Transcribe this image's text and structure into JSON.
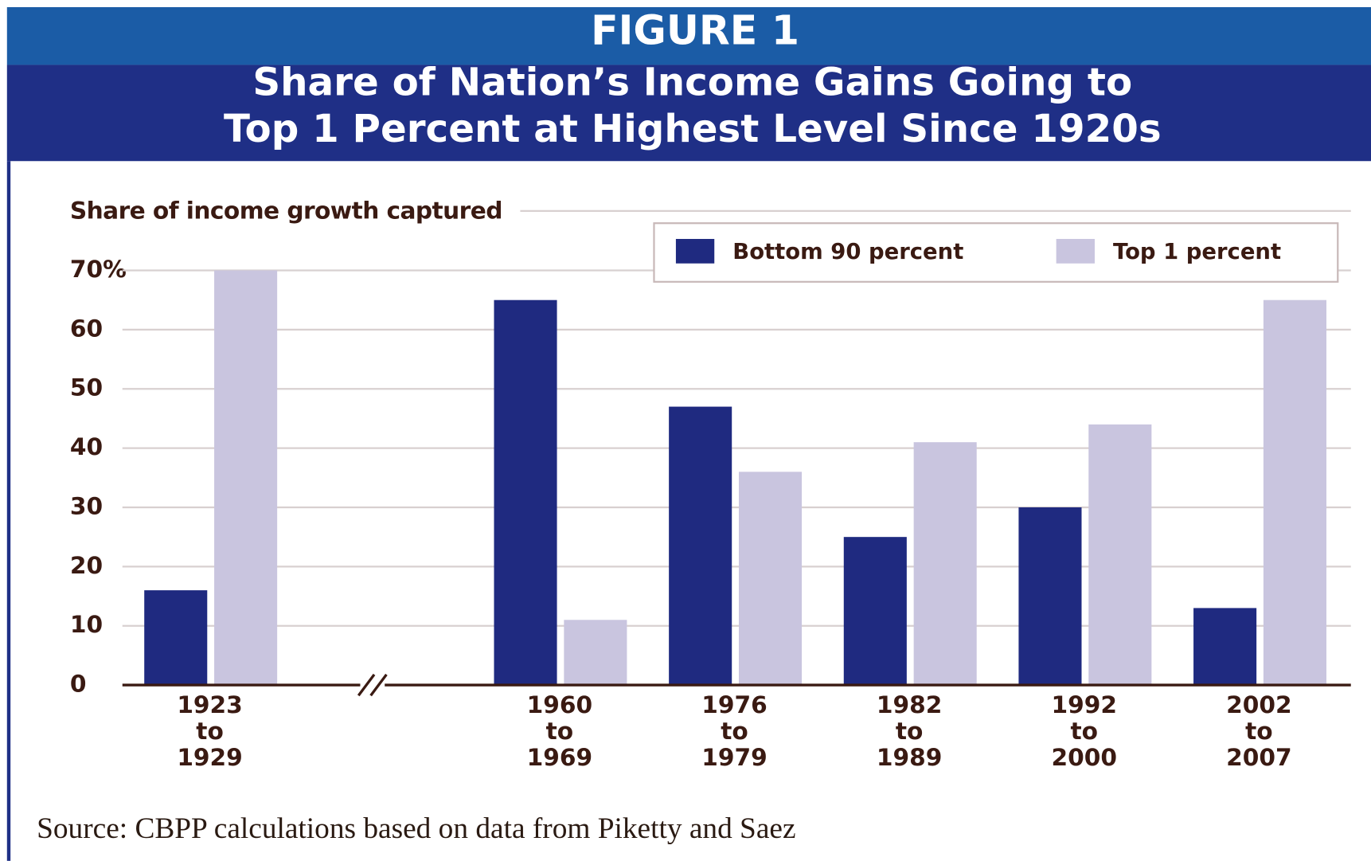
{
  "chart_data": {
    "type": "bar",
    "title": "FIGURE 1",
    "subtitle": [
      "Share of Nation’s Income Gains Going to",
      "Top 1 Percent at Highest Level Since 1920s"
    ],
    "y_label": "Share of income growth captured",
    "source": "Source: CBPP calculations based on data from Piketty and Saez",
    "categories": [
      [
        "1923",
        "to",
        "1929"
      ],
      null,
      [
        "1960",
        "to",
        "1969"
      ],
      [
        "1976",
        "to",
        "1979"
      ],
      [
        "1982",
        "to",
        "1989"
      ],
      [
        "1992",
        "to",
        "2000"
      ],
      [
        "2002",
        "to",
        "2007"
      ]
    ],
    "series": [
      {
        "name": "Bottom 90 percent",
        "color": "#1f2a80",
        "values": [
          16,
          null,
          65,
          47,
          25,
          30,
          13
        ]
      },
      {
        "name": "Top 1 percent",
        "color": "#c9c5df",
        "values": [
          70,
          null,
          11,
          36,
          41,
          44,
          65
        ]
      }
    ],
    "ylim": [
      0,
      70
    ],
    "yticks": [
      0,
      10,
      20,
      30,
      40,
      50,
      60,
      {
        "value": 70,
        "label": "70%"
      }
    ],
    "grid": true
  }
}
